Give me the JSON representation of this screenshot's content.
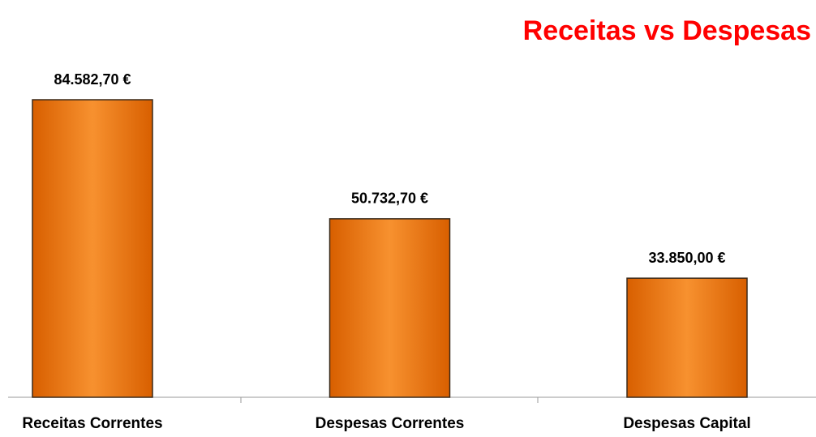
{
  "chart_data": {
    "type": "bar",
    "title": "Receitas vs Despesas",
    "categories": [
      "Receitas Correntes",
      "Despesas Correntes",
      "Despesas Capital"
    ],
    "values": [
      84582.7,
      50732.7,
      33850.0
    ],
    "value_labels": [
      "84.582,70 €",
      "50.732,70 €",
      "33.850,00 €"
    ],
    "color": "#f07a10"
  }
}
